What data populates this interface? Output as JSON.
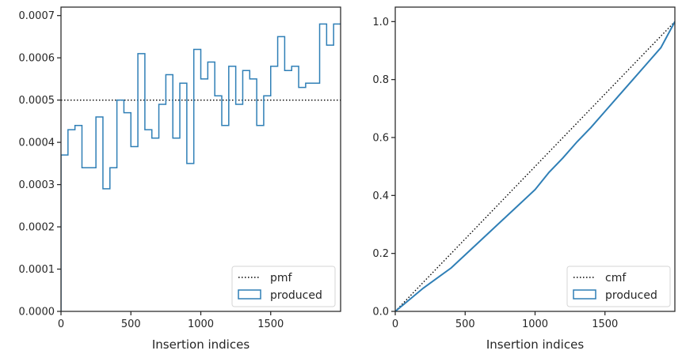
{
  "colors": {
    "series": "#2f7fb6",
    "reference": "#000000",
    "frame": "#262626"
  },
  "chart_data": [
    {
      "type": "step",
      "xlabel": "Insertion indices",
      "ylabel": "",
      "xlim": [
        0,
        2000
      ],
      "ylim": [
        0,
        0.00072
      ],
      "xticks": [
        0,
        500,
        1000,
        1500
      ],
      "xtick_labels": [
        "0",
        "500",
        "1000",
        "1500"
      ],
      "yticks": [
        0,
        0.0001,
        0.0002,
        0.0003,
        0.0004,
        0.0005,
        0.0006,
        0.0007
      ],
      "ytick_labels": [
        "0.0000",
        "0.0001",
        "0.0002",
        "0.0003",
        "0.0004",
        "0.0005",
        "0.0006",
        "0.0007"
      ],
      "legend_position": "lower-right",
      "reference": {
        "name": "pmf",
        "value": 0.0005
      },
      "series": [
        {
          "name": "produced",
          "bin_width": 50,
          "values": [
            0.00037,
            0.00043,
            0.00044,
            0.00034,
            0.00034,
            0.00046,
            0.00029,
            0.00034,
            0.0005,
            0.00047,
            0.00039,
            0.00061,
            0.00043,
            0.00041,
            0.00049,
            0.00056,
            0.00041,
            0.00054,
            0.00035,
            0.00062,
            0.00055,
            0.00059,
            0.00051,
            0.00044,
            0.00058,
            0.00049,
            0.00057,
            0.00055,
            0.00044,
            0.00051,
            0.00058,
            0.00065,
            0.00057,
            0.00058,
            0.00053,
            0.00054,
            0.00054,
            0.00068,
            0.00063,
            0.00068
          ]
        }
      ]
    },
    {
      "type": "line",
      "xlabel": "Insertion indices",
      "ylabel": "",
      "xlim": [
        0,
        2000
      ],
      "ylim": [
        0,
        1.05
      ],
      "xticks": [
        0,
        500,
        1000,
        1500
      ],
      "xtick_labels": [
        "0",
        "500",
        "1000",
        "1500"
      ],
      "yticks": [
        0,
        0.2,
        0.4,
        0.6,
        0.8,
        1.0
      ],
      "ytick_labels": [
        "0.0",
        "0.2",
        "0.4",
        "0.6",
        "0.8",
        "1.0"
      ],
      "legend_position": "lower-right",
      "reference": {
        "name": "cmf",
        "x": [
          0,
          2000
        ],
        "y": [
          0,
          1.0
        ]
      },
      "series": [
        {
          "name": "produced",
          "x": [
            0,
            100,
            200,
            300,
            400,
            500,
            600,
            700,
            800,
            900,
            1000,
            1100,
            1200,
            1300,
            1400,
            1500,
            1600,
            1700,
            1800,
            1900,
            2000
          ],
          "y": [
            0,
            0.04,
            0.08,
            0.115,
            0.15,
            0.195,
            0.24,
            0.285,
            0.33,
            0.375,
            0.42,
            0.48,
            0.53,
            0.585,
            0.635,
            0.69,
            0.745,
            0.8,
            0.855,
            0.91,
            1.0
          ]
        }
      ]
    }
  ]
}
